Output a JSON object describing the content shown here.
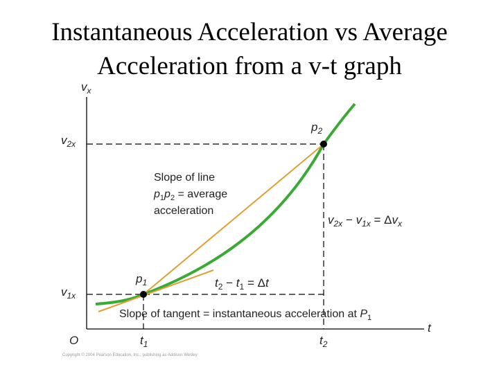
{
  "title": {
    "line1": "Instantaneous Acceleration vs Average",
    "line2": "Acceleration from a v-t graph"
  },
  "graph": {
    "axis_vertical_label": "v",
    "axis_vertical_sub": "x",
    "axis_horizontal_label": "t",
    "origin_label": "O",
    "tick_v2x": {
      "main": "v",
      "sub": "2x"
    },
    "tick_v1x": {
      "main": "v",
      "sub": "1x"
    },
    "tick_t1": {
      "main": "t",
      "sub": "1"
    },
    "tick_t2": {
      "main": "t",
      "sub": "2"
    },
    "point_p1": {
      "main": "p",
      "sub": "1"
    },
    "point_p2": {
      "main": "p",
      "sub": "2"
    },
    "secant_label_line1": "Slope of line",
    "secant_label_line2_a": "p",
    "secant_label_line2_sub1": "1",
    "secant_label_line2_b": "p",
    "secant_label_line2_sub2": "2",
    "secant_label_line2_c": " = average",
    "secant_label_line3": "acceleration",
    "delta_v_label": {
      "v1": "v",
      "sub1": "2x",
      "minus": " − ",
      "v2": "v",
      "sub2": "1x",
      "eq": " = Δ",
      "v3": "v",
      "sub3": "x"
    },
    "delta_t_label": {
      "t1": "t",
      "sub1": "2",
      "minus": " − ",
      "t2": "t",
      "sub2": "1",
      "eq": " = Δ",
      "t3": "t"
    },
    "tangent_label": {
      "text": "Slope of tangent = instantaneous acceleration at ",
      "p": "P",
      "sub": "1"
    },
    "colors": {
      "curve": "#3aaa35",
      "lines": "#e0a030",
      "axes": "#000000",
      "dashes": "#000000"
    }
  },
  "copyright": "Copyright © 2004 Pearson Education, Inc., publishing as Addison Wesley"
}
